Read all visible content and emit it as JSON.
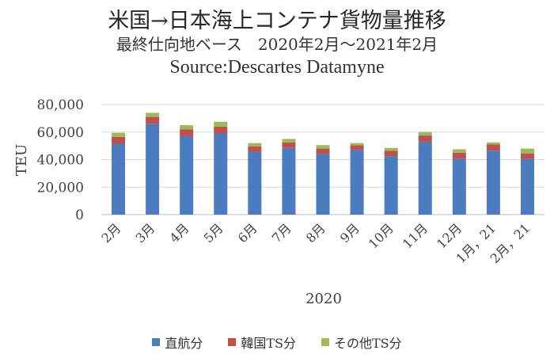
{
  "title": "米国→日本海上コンテナ貨物量推移",
  "subtitle": "最終仕向地ベース　2020年2月～2021年2月",
  "source": "Source:Descartes Datamyne",
  "colors": {
    "direct": "#4a7cbf",
    "korea": "#c0504d",
    "other": "#9bbb59"
  },
  "chart_data": {
    "type": "bar",
    "stacked": true,
    "title": "米国→日本海上コンテナ貨物量推移",
    "subtitle": "最終仕向地ベース　2020年2月～2021年2月",
    "xlabel": "2020",
    "ylabel": "TEU",
    "ylim": [
      0,
      80000
    ],
    "yticks": [
      "0",
      "20,000",
      "40,000",
      "60,000",
      "80,000"
    ],
    "ytick_values": [
      0,
      20000,
      40000,
      60000,
      80000
    ],
    "grid": true,
    "legend_position": "bottom",
    "categories": [
      "2月",
      "3月",
      "4月",
      "5月",
      "6月",
      "7月",
      "8月",
      "9月",
      "10月",
      "11月",
      "12月",
      "1月，21",
      "2月，21"
    ],
    "series": [
      {
        "name": "直航分",
        "values": [
          51500,
          66000,
          57000,
          59000,
          45500,
          48500,
          44000,
          47000,
          42500,
          53000,
          40500,
          46500,
          40500
        ]
      },
      {
        "name": "韓国TS分",
        "values": [
          5000,
          5000,
          5000,
          5000,
          4000,
          4000,
          4000,
          3500,
          4000,
          4500,
          4500,
          4500,
          4000
        ]
      },
      {
        "name": "その他TS分",
        "values": [
          3000,
          3000,
          3000,
          3500,
          2500,
          2500,
          2500,
          1500,
          2000,
          2500,
          2500,
          1500,
          3500
        ]
      }
    ]
  }
}
